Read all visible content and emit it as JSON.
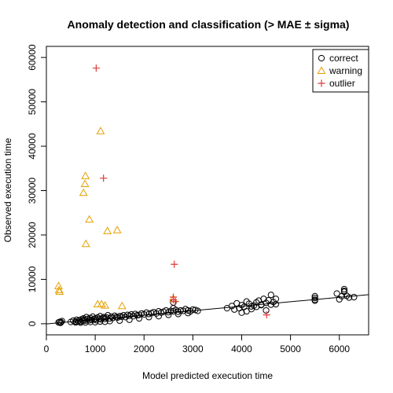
{
  "chart_data": {
    "type": "scatter",
    "title": "Anomaly detection and classification (> MAE ± sigma)",
    "xlabel": "Model predicted execution time",
    "ylabel": "Observed execution time",
    "xlim": [
      0,
      6600
    ],
    "ylim": [
      -2500,
      62500
    ],
    "xticks": [
      0,
      1000,
      2000,
      3000,
      4000,
      5000,
      6000
    ],
    "yticks": [
      0,
      10000,
      20000,
      30000,
      40000,
      50000,
      60000
    ],
    "legend": {
      "position": "top-right",
      "entries": [
        {
          "label": "correct",
          "marker": "circle",
          "color": "#000000"
        },
        {
          "label": "warning",
          "marker": "triangle",
          "color": "#E69F00"
        },
        {
          "label": "outlier",
          "marker": "plus",
          "color": "#DF3A3A"
        }
      ]
    },
    "fit_line": {
      "x": [
        0,
        6600
      ],
      "y": [
        -50,
        6550
      ],
      "color": "#000000"
    },
    "series": [
      {
        "name": "correct",
        "marker": "circle",
        "color": "#000000",
        "x": [
          250,
          270,
          290,
          300,
          320,
          500,
          550,
          600,
          620,
          650,
          680,
          700,
          720,
          740,
          760,
          780,
          800,
          820,
          850,
          880,
          900,
          930,
          950,
          980,
          1000,
          1020,
          1050,
          1080,
          1100,
          1120,
          1150,
          1180,
          1200,
          1230,
          1260,
          1300,
          1330,
          1360,
          1400,
          1430,
          1460,
          1500,
          1540,
          1580,
          1620,
          1660,
          1700,
          1740,
          1780,
          1820,
          1860,
          1900,
          1950,
          2000,
          2050,
          2100,
          2150,
          2200,
          2250,
          2300,
          2350,
          2400,
          2450,
          2500,
          2550,
          2600,
          2650,
          2700,
          2750,
          2800,
          2850,
          2900,
          2950,
          3000,
          3050,
          3100,
          3700,
          3800,
          3850,
          3900,
          3950,
          4000,
          4050,
          4100,
          4150,
          4200,
          4250,
          4300,
          4350,
          4400,
          4450,
          4500,
          4550,
          4600,
          4650,
          4700,
          5500,
          5500,
          5500,
          5500,
          5950,
          6000,
          6050,
          6100,
          6100,
          6150,
          6200,
          6300,
          600,
          700,
          800,
          900,
          1000,
          1100,
          1200,
          1300,
          1500,
          1700,
          1900,
          2100,
          2300,
          2500,
          2700,
          2900,
          2600,
          2600,
          4000,
          4100,
          4200,
          4300,
          4400,
          4500,
          4600,
          4700,
          6100
        ],
        "y": [
          300,
          400,
          200,
          350,
          600,
          400,
          700,
          500,
          900,
          600,
          800,
          500,
          1000,
          700,
          1200,
          900,
          700,
          1500,
          1100,
          800,
          1300,
          900,
          1600,
          1000,
          1200,
          800,
          1400,
          1100,
          1700,
          1000,
          1300,
          1500,
          1100,
          1400,
          1900,
          1200,
          1600,
          1300,
          1800,
          1500,
          1400,
          1700,
          1600,
          1900,
          1500,
          2000,
          1800,
          2100,
          1700,
          2200,
          1900,
          2000,
          2300,
          2100,
          2500,
          2200,
          2400,
          2600,
          2300,
          2800,
          2500,
          2700,
          3000,
          2600,
          2900,
          2800,
          3100,
          2700,
          3000,
          2900,
          3300,
          3000,
          2800,
          3200,
          3100,
          2900,
          3500,
          4000,
          3200,
          4600,
          3500,
          4200,
          3800,
          5000,
          4500,
          3900,
          4100,
          4800,
          5200,
          4300,
          5600,
          4700,
          5300,
          6500,
          4900,
          5600,
          5400,
          5800,
          6200,
          5200,
          6800,
          5500,
          6200,
          7200,
          7800,
          6300,
          5900,
          6000,
          300,
          250,
          300,
          400,
          350,
          500,
          450,
          600,
          700,
          900,
          1200,
          1500,
          1700,
          2000,
          2200,
          2400,
          3500,
          4800,
          2500,
          2800,
          3300,
          3800,
          4200,
          3000,
          4300,
          4400,
          7400
        ]
      },
      {
        "name": "warning",
        "marker": "triangle",
        "color": "#E69F00",
        "x": [
          250,
          260,
          270,
          760,
          790,
          800,
          810,
          880,
          1110,
          1130,
          1250,
          1450,
          1550,
          1050,
          1200,
          2600
        ],
        "y": [
          8500,
          7600,
          7200,
          29500,
          31500,
          33300,
          18000,
          23500,
          43400,
          4400,
          20900,
          21100,
          4000,
          4400,
          4100,
          5600
        ]
      },
      {
        "name": "outlier",
        "marker": "plus",
        "color": "#DF3A3A",
        "x": [
          1020,
          1170,
          2620,
          2600,
          2600,
          2640,
          4510
        ],
        "y": [
          57600,
          32800,
          13400,
          6000,
          5400,
          5000,
          2000
        ]
      }
    ]
  }
}
